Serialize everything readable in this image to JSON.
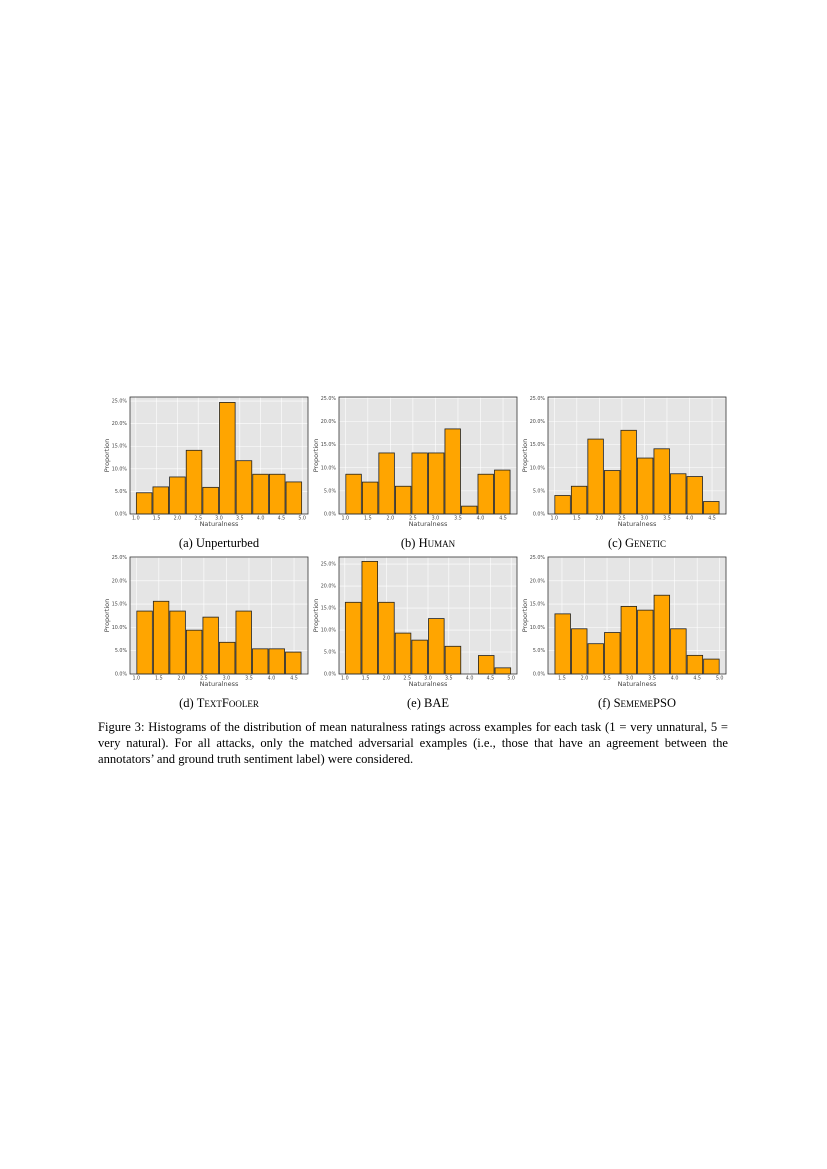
{
  "chart_data": [
    {
      "type": "histogram",
      "caption_letter": "(a)",
      "caption": "Unperturbed",
      "caption_small_caps": false,
      "xlabel": "Naturalness",
      "ylabel": "Proportion",
      "bins": [
        1.0,
        1.4,
        1.8,
        2.2,
        2.6,
        3.0,
        3.4,
        3.8,
        4.2,
        4.6,
        5.0
      ],
      "values": [
        4.7,
        6.0,
        8.2,
        14.1,
        5.9,
        24.7,
        11.8,
        8.8,
        8.8,
        7.1
      ],
      "color": "#ffa500",
      "xlim": [
        0.86,
        5.14
      ],
      "ylim": [
        0,
        25.9
      ],
      "xticks": [
        {
          "value": 1.0,
          "label": "1.0"
        },
        {
          "value": 1.5,
          "label": "1.5"
        },
        {
          "value": 2.0,
          "label": "2.0"
        },
        {
          "value": 2.5,
          "label": "2.5"
        },
        {
          "value": 3.0,
          "label": "3.0"
        },
        {
          "value": 3.5,
          "label": "3.5"
        },
        {
          "value": 4.0,
          "label": "4.0"
        },
        {
          "value": 4.5,
          "label": "4.5"
        },
        {
          "value": 5.0,
          "label": "5.0"
        }
      ],
      "yticks": [
        {
          "value": 0,
          "label": "0.0%"
        },
        {
          "value": 5,
          "label": "5.0%"
        },
        {
          "value": 10,
          "label": "10.0%"
        },
        {
          "value": 15,
          "label": "15.0%"
        },
        {
          "value": 20,
          "label": "20.0%"
        },
        {
          "value": 25,
          "label": "25.0%"
        }
      ],
      "grid": true
    },
    {
      "type": "histogram",
      "caption_letter": "(b)",
      "caption": "Human",
      "caption_small_caps": true,
      "xlabel": "Naturalness",
      "ylabel": "Proportion",
      "bins": [
        1.0,
        1.367,
        1.733,
        2.1,
        2.467,
        2.833,
        3.2,
        3.567,
        3.933,
        4.3,
        4.667
      ],
      "values": [
        8.6,
        6.9,
        13.2,
        6.0,
        13.2,
        13.2,
        18.4,
        1.7,
        8.6,
        9.5
      ],
      "color": "#ffa500",
      "xlim": [
        0.86,
        4.81
      ],
      "ylim": [
        0,
        25.3
      ],
      "xticks": [
        {
          "value": 1.0,
          "label": "1.0"
        },
        {
          "value": 1.5,
          "label": "1.5"
        },
        {
          "value": 2.0,
          "label": "2.0"
        },
        {
          "value": 2.5,
          "label": "2.5"
        },
        {
          "value": 3.0,
          "label": "3.0"
        },
        {
          "value": 3.5,
          "label": "3.5"
        },
        {
          "value": 4.0,
          "label": "4.0"
        },
        {
          "value": 4.5,
          "label": "4.5"
        }
      ],
      "yticks": [
        {
          "value": 0,
          "label": "0.0%"
        },
        {
          "value": 5,
          "label": "5.0%"
        },
        {
          "value": 10,
          "label": "10.0%"
        },
        {
          "value": 15,
          "label": "15.0%"
        },
        {
          "value": 20,
          "label": "20.0%"
        },
        {
          "value": 25,
          "label": "25.0%"
        }
      ],
      "grid": true
    },
    {
      "type": "histogram",
      "caption_letter": "(c)",
      "caption": "Genetic",
      "caption_small_caps": true,
      "xlabel": "Naturalness",
      "ylabel": "Proportion",
      "bins": [
        1.0,
        1.367,
        1.733,
        2.1,
        2.467,
        2.833,
        3.2,
        3.567,
        3.933,
        4.3,
        4.667
      ],
      "values": [
        4.0,
        6.0,
        16.2,
        9.4,
        18.1,
        12.1,
        14.1,
        8.7,
        8.1,
        2.7
      ],
      "color": "#ffa500",
      "xlim": [
        0.86,
        4.81
      ],
      "ylim": [
        0,
        25.3
      ],
      "xticks": [
        {
          "value": 1.0,
          "label": "1.0"
        },
        {
          "value": 1.5,
          "label": "1.5"
        },
        {
          "value": 2.0,
          "label": "2.0"
        },
        {
          "value": 2.5,
          "label": "2.5"
        },
        {
          "value": 3.0,
          "label": "3.0"
        },
        {
          "value": 3.5,
          "label": "3.5"
        },
        {
          "value": 4.0,
          "label": "4.0"
        },
        {
          "value": 4.5,
          "label": "4.5"
        }
      ],
      "yticks": [
        {
          "value": 0,
          "label": "0.0%"
        },
        {
          "value": 5,
          "label": "5.0%"
        },
        {
          "value": 10,
          "label": "10.0%"
        },
        {
          "value": 15,
          "label": "15.0%"
        },
        {
          "value": 20,
          "label": "20.0%"
        },
        {
          "value": 25,
          "label": "25.0%"
        }
      ],
      "grid": true
    },
    {
      "type": "histogram",
      "caption_letter": "(d)",
      "caption": "TextFooler",
      "caption_small_caps": true,
      "xlabel": "Naturalness",
      "ylabel": "Proportion",
      "bins": [
        1.0,
        1.367,
        1.733,
        2.1,
        2.467,
        2.833,
        3.2,
        3.567,
        3.933,
        4.3,
        4.667
      ],
      "values": [
        13.5,
        15.6,
        13.5,
        9.4,
        12.2,
        6.8,
        13.5,
        5.4,
        5.4,
        4.7
      ],
      "color": "#ffa500",
      "xlim": [
        0.86,
        4.81
      ],
      "ylim": [
        0,
        25.1
      ],
      "xticks": [
        {
          "value": 1.0,
          "label": "1.0"
        },
        {
          "value": 1.5,
          "label": "1.5"
        },
        {
          "value": 2.0,
          "label": "2.0"
        },
        {
          "value": 2.5,
          "label": "2.5"
        },
        {
          "value": 3.0,
          "label": "3.0"
        },
        {
          "value": 3.5,
          "label": "3.5"
        },
        {
          "value": 4.0,
          "label": "4.0"
        },
        {
          "value": 4.5,
          "label": "4.5"
        }
      ],
      "yticks": [
        {
          "value": 0,
          "label": "0.0%"
        },
        {
          "value": 5,
          "label": "5.0%"
        },
        {
          "value": 10,
          "label": "10.0%"
        },
        {
          "value": 15,
          "label": "15.0%"
        },
        {
          "value": 20,
          "label": "20.0%"
        },
        {
          "value": 25,
          "label": "25.0%"
        }
      ],
      "grid": true
    },
    {
      "type": "histogram",
      "caption_letter": "(e)",
      "caption": "BAE",
      "caption_small_caps": false,
      "xlabel": "Naturalness",
      "ylabel": "Proportion",
      "bins": [
        1.0,
        1.4,
        1.8,
        2.2,
        2.6,
        3.0,
        3.4,
        3.8,
        4.2,
        4.6,
        5.0
      ],
      "values": [
        16.3,
        25.6,
        16.3,
        9.3,
        7.7,
        12.6,
        6.3,
        0,
        4.2,
        1.4
      ],
      "color": "#ffa500",
      "xlim": [
        0.86,
        5.14
      ],
      "ylim": [
        0,
        26.6
      ],
      "xticks": [
        {
          "value": 1.0,
          "label": "1.0"
        },
        {
          "value": 1.5,
          "label": "1.5"
        },
        {
          "value": 2.0,
          "label": "2.0"
        },
        {
          "value": 2.5,
          "label": "2.5"
        },
        {
          "value": 3.0,
          "label": "3.0"
        },
        {
          "value": 3.5,
          "label": "3.5"
        },
        {
          "value": 4.0,
          "label": "4.0"
        },
        {
          "value": 4.5,
          "label": "4.5"
        },
        {
          "value": 5.0,
          "label": "5.0"
        }
      ],
      "yticks": [
        {
          "value": 0,
          "label": "0.0%"
        },
        {
          "value": 5,
          "label": "5.0%"
        },
        {
          "value": 10,
          "label": "10.0%"
        },
        {
          "value": 15,
          "label": "15.0%"
        },
        {
          "value": 20,
          "label": "20.0%"
        },
        {
          "value": 25,
          "label": "25.0%"
        }
      ],
      "grid": true
    },
    {
      "type": "histogram",
      "caption_letter": "(f)",
      "caption": "SememePSO",
      "caption_small_caps": true,
      "xlabel": "Naturalness",
      "ylabel": "Proportion",
      "bins": [
        1.333,
        1.7,
        2.067,
        2.433,
        2.8,
        3.167,
        3.533,
        3.9,
        4.267,
        4.633,
        5.0
      ],
      "values": [
        12.9,
        9.7,
        6.5,
        8.9,
        14.5,
        13.7,
        16.9,
        9.7,
        4.0,
        3.2
      ],
      "color": "#ffa500",
      "xlim": [
        1.19,
        5.14
      ],
      "ylim": [
        0,
        25.1
      ],
      "xticks": [
        {
          "value": 1.5,
          "label": "1.5"
        },
        {
          "value": 2.0,
          "label": "2.0"
        },
        {
          "value": 2.5,
          "label": "2.5"
        },
        {
          "value": 3.0,
          "label": "3.0"
        },
        {
          "value": 3.5,
          "label": "3.5"
        },
        {
          "value": 4.0,
          "label": "4.0"
        },
        {
          "value": 4.5,
          "label": "4.5"
        },
        {
          "value": 5.0,
          "label": "5.0"
        }
      ],
      "yticks": [
        {
          "value": 0,
          "label": "0.0%"
        },
        {
          "value": 5,
          "label": "5.0%"
        },
        {
          "value": 10,
          "label": "10.0%"
        },
        {
          "value": 15,
          "label": "15.0%"
        },
        {
          "value": 20,
          "label": "20.0%"
        },
        {
          "value": 25,
          "label": "25.0%"
        }
      ],
      "grid": true
    }
  ],
  "figure_caption": "Figure 3: Histograms of the distribution of mean naturalness ratings across examples for each task (1 = very unnatural, 5 = very natural). For all attacks, only the matched adversarial examples (i.e., those that have an agreement between the annotators’ and ground truth sentiment label) were considered."
}
